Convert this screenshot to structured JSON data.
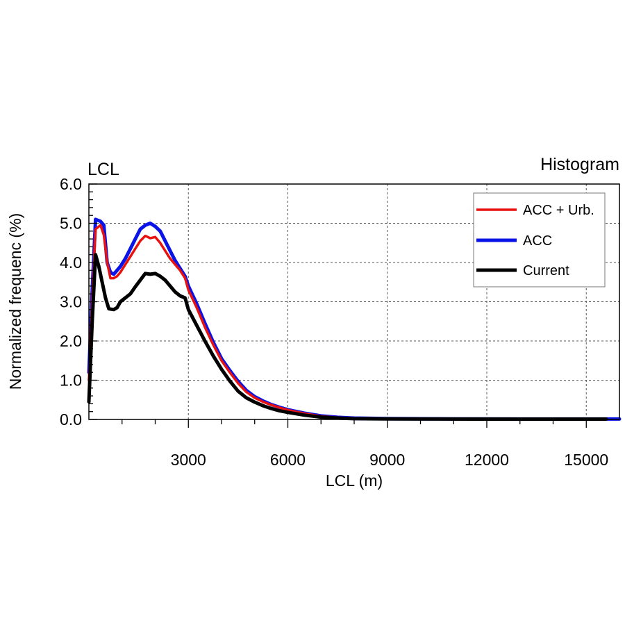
{
  "chart_data": {
    "type": "line",
    "title_left": "LCL",
    "title_right": "Histogram",
    "xlabel": "LCL (m)",
    "ylabel": "Normalized frequenc (%)",
    "xlim": [
      0,
      16000
    ],
    "ylim": [
      0,
      6
    ],
    "xticks": [
      3000,
      6000,
      9000,
      12000,
      15000
    ],
    "xtick_labels": [
      "3000",
      "6000",
      "9000",
      "12000",
      "15000"
    ],
    "yticks": [
      0,
      1,
      2,
      3,
      4,
      5,
      6
    ],
    "ytick_labels": [
      "0.0",
      "1.0",
      "2.0",
      "3.0",
      "4.0",
      "5.0",
      "6.0"
    ],
    "grid": true,
    "legend_position": "top-right",
    "series": [
      {
        "name": "ACC + Urb.",
        "color": "#e8120e",
        "points": [
          [
            0,
            1.0
          ],
          [
            100,
            3.0
          ],
          [
            200,
            4.85
          ],
          [
            350,
            4.95
          ],
          [
            450,
            4.7
          ],
          [
            550,
            4.0
          ],
          [
            650,
            3.6
          ],
          [
            750,
            3.6
          ],
          [
            850,
            3.65
          ],
          [
            950,
            3.75
          ],
          [
            1100,
            3.95
          ],
          [
            1250,
            4.15
          ],
          [
            1400,
            4.35
          ],
          [
            1550,
            4.55
          ],
          [
            1700,
            4.68
          ],
          [
            1850,
            4.62
          ],
          [
            2000,
            4.65
          ],
          [
            2150,
            4.5
          ],
          [
            2300,
            4.3
          ],
          [
            2450,
            4.1
          ],
          [
            2600,
            3.95
          ],
          [
            2750,
            3.8
          ],
          [
            2900,
            3.6
          ],
          [
            3000,
            3.3
          ],
          [
            3250,
            2.85
          ],
          [
            3500,
            2.35
          ],
          [
            3750,
            1.9
          ],
          [
            4000,
            1.5
          ],
          [
            4250,
            1.2
          ],
          [
            4500,
            0.92
          ],
          [
            4750,
            0.7
          ],
          [
            5000,
            0.55
          ],
          [
            5250,
            0.45
          ],
          [
            5500,
            0.37
          ],
          [
            5750,
            0.3
          ],
          [
            6000,
            0.24
          ],
          [
            6500,
            0.15
          ],
          [
            7000,
            0.08
          ],
          [
            7500,
            0.05
          ],
          [
            8000,
            0.03
          ],
          [
            9000,
            0.02
          ],
          [
            10000,
            0.015
          ],
          [
            11000,
            0.012
          ],
          [
            12000,
            0.01
          ],
          [
            13000,
            0.01
          ],
          [
            14000,
            0.01
          ],
          [
            15000,
            0.01
          ],
          [
            15600,
            0.01
          ]
        ]
      },
      {
        "name": "ACC",
        "color": "#0a14e6",
        "points": [
          [
            0,
            1.2
          ],
          [
            100,
            3.3
          ],
          [
            200,
            5.1
          ],
          [
            350,
            5.05
          ],
          [
            450,
            4.95
          ],
          [
            550,
            4.0
          ],
          [
            650,
            3.75
          ],
          [
            750,
            3.7
          ],
          [
            850,
            3.8
          ],
          [
            950,
            3.9
          ],
          [
            1100,
            4.1
          ],
          [
            1250,
            4.35
          ],
          [
            1400,
            4.6
          ],
          [
            1550,
            4.85
          ],
          [
            1700,
            4.95
          ],
          [
            1850,
            5.0
          ],
          [
            2000,
            4.92
          ],
          [
            2150,
            4.8
          ],
          [
            2300,
            4.55
          ],
          [
            2450,
            4.3
          ],
          [
            2600,
            4.05
          ],
          [
            2750,
            3.85
          ],
          [
            2900,
            3.65
          ],
          [
            3000,
            3.4
          ],
          [
            3250,
            2.95
          ],
          [
            3500,
            2.45
          ],
          [
            3750,
            1.97
          ],
          [
            4000,
            1.55
          ],
          [
            4250,
            1.25
          ],
          [
            4500,
            0.97
          ],
          [
            4750,
            0.74
          ],
          [
            5000,
            0.58
          ],
          [
            5250,
            0.47
          ],
          [
            5500,
            0.38
          ],
          [
            5750,
            0.31
          ],
          [
            6000,
            0.25
          ],
          [
            6500,
            0.16
          ],
          [
            7000,
            0.09
          ],
          [
            7500,
            0.055
          ],
          [
            8000,
            0.035
          ],
          [
            9000,
            0.022
          ],
          [
            10000,
            0.018
          ],
          [
            11000,
            0.015
          ],
          [
            12000,
            0.012
          ],
          [
            13000,
            0.01
          ],
          [
            14000,
            0.01
          ],
          [
            15000,
            0.01
          ],
          [
            16000,
            0.01
          ]
        ]
      },
      {
        "name": "Current",
        "color": "#000000",
        "points": [
          [
            0,
            0.45
          ],
          [
            100,
            2.5
          ],
          [
            200,
            4.2
          ],
          [
            300,
            3.9
          ],
          [
            400,
            3.5
          ],
          [
            500,
            3.1
          ],
          [
            600,
            2.82
          ],
          [
            750,
            2.8
          ],
          [
            850,
            2.85
          ],
          [
            950,
            3.0
          ],
          [
            1100,
            3.1
          ],
          [
            1250,
            3.2
          ],
          [
            1400,
            3.38
          ],
          [
            1550,
            3.55
          ],
          [
            1700,
            3.72
          ],
          [
            1850,
            3.7
          ],
          [
            2000,
            3.72
          ],
          [
            2150,
            3.65
          ],
          [
            2300,
            3.55
          ],
          [
            2450,
            3.4
          ],
          [
            2600,
            3.25
          ],
          [
            2750,
            3.15
          ],
          [
            2900,
            3.1
          ],
          [
            3000,
            2.8
          ],
          [
            3250,
            2.4
          ],
          [
            3500,
            2.0
          ],
          [
            3750,
            1.62
          ],
          [
            4000,
            1.28
          ],
          [
            4250,
            0.98
          ],
          [
            4500,
            0.72
          ],
          [
            4750,
            0.55
          ],
          [
            5000,
            0.44
          ],
          [
            5250,
            0.35
          ],
          [
            5500,
            0.28
          ],
          [
            5750,
            0.22
          ],
          [
            6000,
            0.18
          ],
          [
            6500,
            0.11
          ],
          [
            7000,
            0.06
          ],
          [
            7500,
            0.035
          ],
          [
            8000,
            0.02
          ],
          [
            9000,
            0.012
          ],
          [
            10000,
            0.01
          ],
          [
            12000,
            0.008
          ],
          [
            14000,
            0.008
          ],
          [
            15600,
            0.008
          ]
        ]
      }
    ]
  }
}
